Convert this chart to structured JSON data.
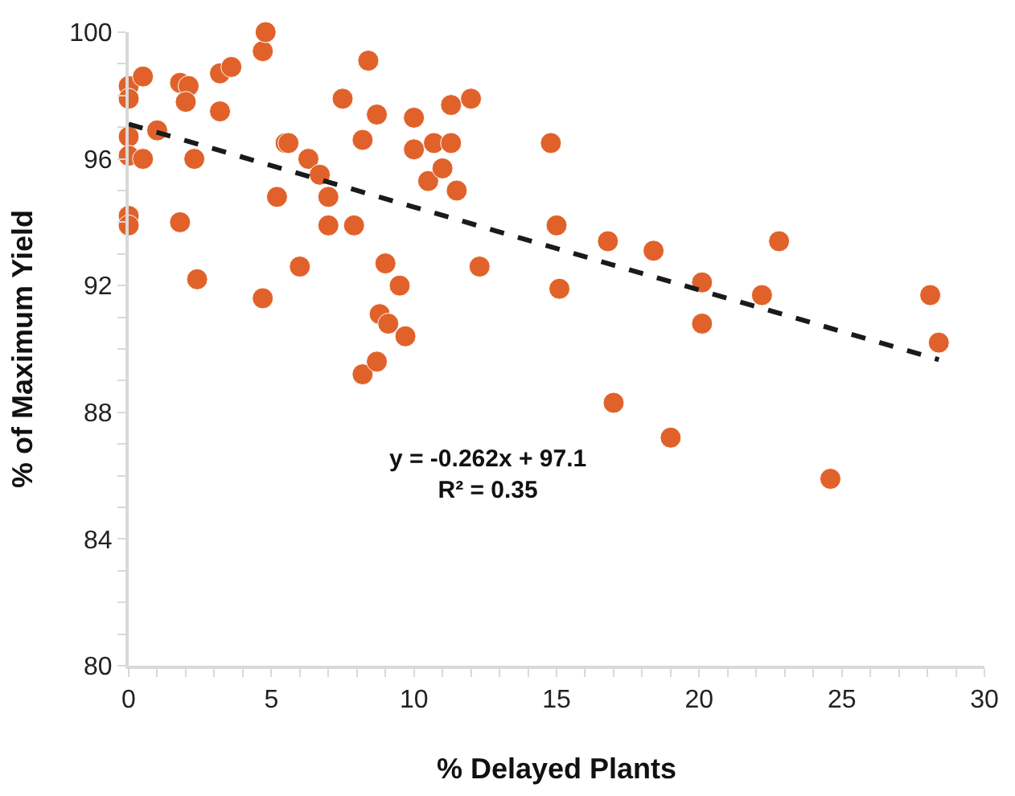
{
  "chart_data": {
    "type": "scatter",
    "xlabel": "% Delayed Plants",
    "ylabel": "% of Maximum Yield",
    "xlim": [
      0,
      30
    ],
    "xticks": [
      0,
      5,
      10,
      15,
      20,
      25,
      30
    ],
    "ylim": [
      80,
      100
    ],
    "yticks": [
      80,
      84,
      88,
      92,
      96,
      100
    ],
    "legend": false,
    "marker": "circle",
    "series": [
      {
        "color": "#e0622a",
        "x": [
          0,
          0,
          0.5,
          0,
          0,
          0.5,
          1.0,
          0,
          0,
          1.8,
          1.8,
          2.1,
          2.0,
          2.3,
          2.4,
          3.2,
          3.6,
          3.2,
          4.7,
          4.8,
          4.7,
          5.2,
          5.5,
          5.6,
          6.0,
          6.3,
          6.7,
          7.0,
          7.0,
          7.5,
          7.9,
          8.2,
          8.4,
          8.2,
          8.7,
          8.8,
          8.7,
          9.1,
          9.0,
          9.5,
          9.7,
          10.0,
          10.0,
          10.5,
          10.7,
          11.0,
          11.3,
          11.3,
          11.5,
          12.0,
          12.3,
          14.8,
          15.0,
          15.1,
          16.8,
          17.0,
          18.4,
          19.0,
          20.1,
          20.1,
          22.2,
          22.8,
          24.6,
          28.1,
          28.4
        ],
        "values": [
          98.3,
          97.9,
          98.6,
          96.7,
          96.1,
          96.0,
          96.9,
          94.2,
          93.9,
          94.0,
          98.4,
          98.3,
          97.8,
          96.0,
          92.2,
          98.7,
          98.9,
          97.5,
          99.4,
          100.0,
          91.6,
          94.8,
          96.5,
          96.5,
          92.6,
          96.0,
          95.5,
          94.8,
          93.9,
          97.9,
          93.9,
          89.2,
          99.1,
          96.6,
          97.4,
          91.1,
          89.6,
          90.8,
          92.7,
          92.0,
          90.4,
          96.3,
          97.3,
          95.3,
          96.5,
          95.7,
          97.7,
          96.5,
          95.0,
          97.9,
          92.6,
          96.5,
          93.9,
          91.9,
          93.4,
          88.3,
          93.1,
          87.2,
          92.1,
          90.8,
          91.7,
          93.4,
          85.9,
          91.7,
          90.2
        ]
      },
      {
        "type": "line",
        "color": "#1a1a1a",
        "line_style": "dashed",
        "marker": "none",
        "x": [
          0,
          28.4
        ],
        "values": [
          97.1,
          89.66
        ]
      }
    ],
    "annotations": [
      "y = -0.262x + 97.1\nR² = 0.35"
    ]
  }
}
